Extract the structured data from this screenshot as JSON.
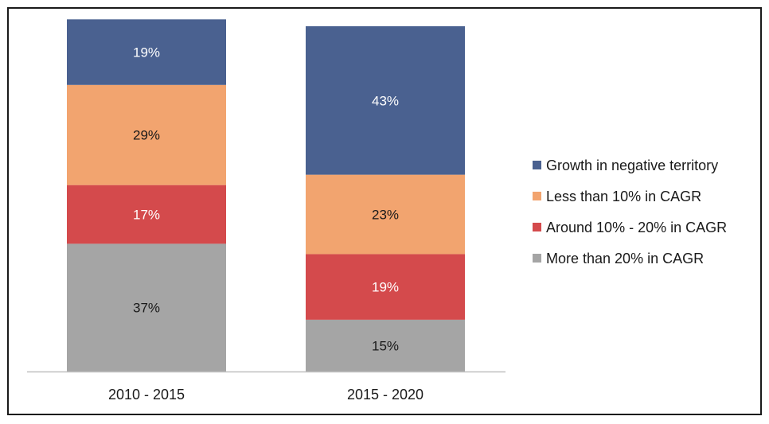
{
  "chart_data": {
    "type": "bar",
    "stacked": true,
    "percent_stacked": true,
    "categories": [
      "2010 - 2015",
      "2015 - 2020"
    ],
    "series": [
      {
        "name": "More than 20% in CAGR",
        "values": [
          37,
          15
        ],
        "labels": [
          "37%",
          "15%"
        ],
        "color": "#a5a5a5",
        "label_color": "#1a1a1a"
      },
      {
        "name": "Around 10% - 20% in CAGR",
        "values": [
          17,
          19
        ],
        "labels": [
          "17%",
          "19%"
        ],
        "color": "#d44a4c",
        "label_color": "#ffffff"
      },
      {
        "name": "Less than 10% in CAGR",
        "values": [
          29,
          23
        ],
        "labels": [
          "29%",
          "23%"
        ],
        "color": "#f2a46f",
        "label_color": "#1a1a1a"
      },
      {
        "name": "Growth in negative territory",
        "values": [
          19,
          43
        ],
        "labels": [
          "19%",
          "43%"
        ],
        "color": "#4a6190",
        "label_color": "#ffffff"
      }
    ],
    "legend_order": [
      "Growth in negative territory",
      "Less than 10% in CAGR",
      "Around 10% - 20% in CAGR",
      "More than 20% in CAGR"
    ],
    "ylim": [
      0,
      100
    ],
    "grid": false,
    "legend_position": "right",
    "title": "",
    "xlabel": "",
    "ylabel": ""
  }
}
